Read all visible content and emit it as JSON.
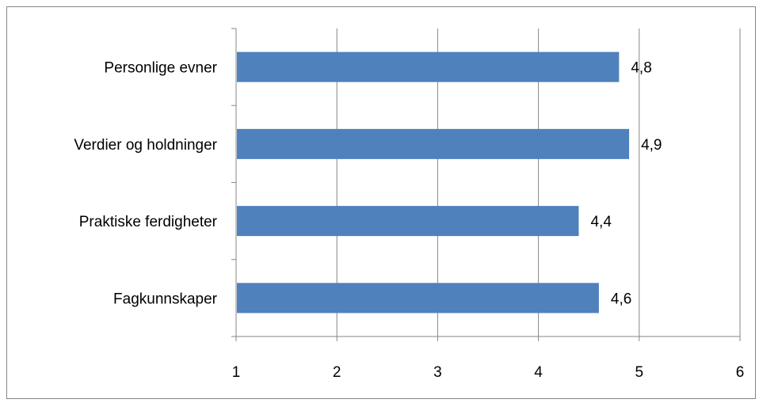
{
  "chart_data": {
    "type": "bar",
    "orientation": "horizontal",
    "categories": [
      "Fagkunnskaper",
      "Praktiske ferdigheter",
      "Verdier og holdninger",
      "Personlige evner"
    ],
    "values": [
      4.6,
      4.4,
      4.9,
      4.8
    ],
    "data_labels": [
      "4,6",
      "4,4",
      "4,9",
      "4,8"
    ],
    "xlim": [
      1,
      6
    ],
    "xticks": [
      "1",
      "2",
      "3",
      "4",
      "5",
      "6"
    ],
    "grid": "vertical",
    "legend": "none",
    "bar_color": "#4F81BD",
    "grid_color": "#868686"
  }
}
